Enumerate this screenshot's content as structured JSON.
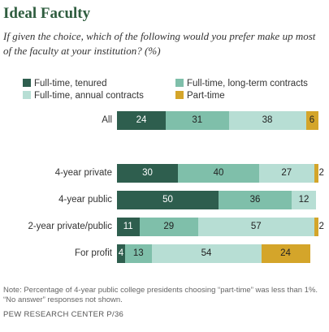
{
  "title": "Ideal Faculty",
  "subtitle": "If given the choice, which of the following would you prefer make up most of the faculty at your institution? (%)",
  "note": "Note: Percentage of 4-year public college presidents choosing “part-time” was less than 1%. “No answer” responses not shown.",
  "source": "PEW RESEARCH CENTER P/36",
  "chart_data": {
    "type": "bar",
    "orientation": "horizontal",
    "stacked": true,
    "categories": [
      "All",
      "4-year private",
      "4-year public",
      "2-year private/public",
      "For profit"
    ],
    "series": [
      {
        "name": "Full-time, tenured",
        "color": "#2e5e4e",
        "values": [
          24,
          30,
          50,
          11,
          4
        ]
      },
      {
        "name": "Full-time, long-term contracts",
        "color": "#7fbfaa",
        "values": [
          31,
          40,
          36,
          29,
          13
        ]
      },
      {
        "name": "Full-time, annual contracts",
        "color": "#b7ded4",
        "values": [
          38,
          27,
          12,
          57,
          54
        ]
      },
      {
        "name": "Part-time",
        "color": "#d4a52a",
        "values": [
          6,
          2,
          null,
          2,
          24
        ]
      }
    ],
    "xlim": [
      0,
      100
    ],
    "legend": "top"
  }
}
